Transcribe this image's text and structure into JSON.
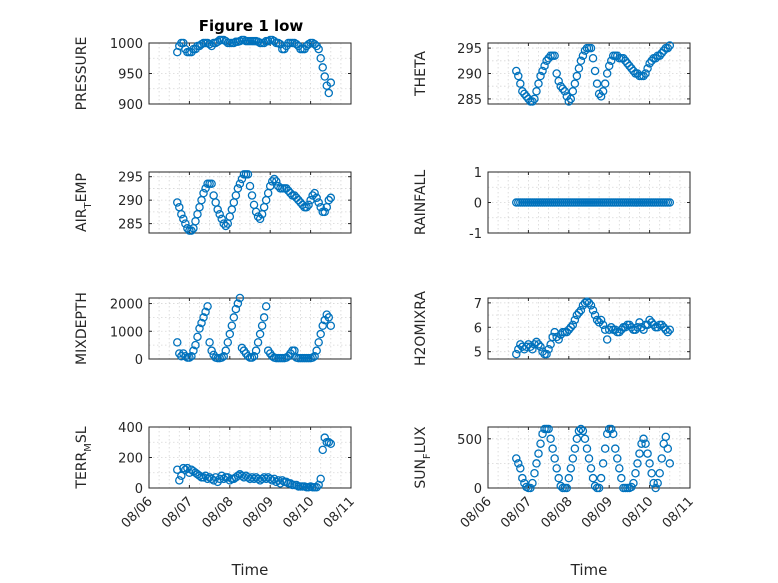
{
  "figure": {
    "title": "Figure 1 low"
  },
  "colors": {
    "marker": "#0072BD",
    "axis": "#262626",
    "grid": "#d6d6d6"
  },
  "x_axis": {
    "label": "Time",
    "ticks": [
      "08/06",
      "08/07",
      "08/08",
      "08/09",
      "08/10",
      "08/11"
    ],
    "range": [
      "08/06",
      "08/11"
    ],
    "label_shown_on": [
      "TERR_MSL",
      "SUN_FLUX"
    ]
  },
  "chart_data": [
    {
      "type": "scatter",
      "ylabel": "PRESSURE",
      "ylim": [
        900,
        1000
      ],
      "yticks": [
        900,
        950,
        1000
      ],
      "grid": true,
      "x": [
        0.7,
        0.75,
        0.8,
        0.85,
        0.9,
        0.95,
        1.0,
        1.05,
        1.1,
        1.15,
        1.2,
        1.25,
        1.3,
        1.35,
        1.4,
        1.45,
        1.5,
        1.55,
        1.6,
        1.65,
        1.7,
        1.75,
        1.8,
        1.85,
        1.9,
        1.95,
        2.0,
        2.05,
        2.1,
        2.15,
        2.2,
        2.25,
        2.3,
        2.35,
        2.4,
        2.45,
        2.5,
        2.55,
        2.6,
        2.65,
        2.7,
        2.75,
        2.8,
        2.85,
        2.9,
        2.95,
        3.0,
        3.05,
        3.1,
        3.15,
        3.2,
        3.25,
        3.3,
        3.35,
        3.4,
        3.45,
        3.5,
        3.55,
        3.6,
        3.65,
        3.7,
        3.75,
        3.8,
        3.85,
        3.9,
        3.95,
        4.0,
        4.05,
        4.1,
        4.15,
        4.2,
        4.25,
        4.3,
        4.35,
        4.4,
        4.45,
        4.5
      ],
      "y": [
        985,
        995,
        1000,
        1000,
        990,
        985,
        985,
        985,
        990,
        990,
        995,
        995,
        998,
        1000,
        1000,
        1000,
        998,
        995,
        1000,
        1000,
        1002,
        1005,
        1005,
        1005,
        1003,
        1000,
        1000,
        1000,
        1000,
        1002,
        1002,
        1003,
        1005,
        1005,
        1003,
        1003,
        1003,
        1003,
        1003,
        1003,
        1002,
        1000,
        1000,
        1000,
        1003,
        1003,
        1005,
        1005,
        1003,
        1000,
        1000,
        998,
        990,
        990,
        995,
        1000,
        1000,
        1000,
        1000,
        998,
        995,
        990,
        990,
        990,
        995,
        998,
        1000,
        1000,
        998,
        995,
        990,
        975,
        960,
        945,
        930,
        918,
        935
      ],
      "series": [
        {
          "name": ""
        }
      ]
    },
    {
      "type": "scatter",
      "ylabel": "THETA",
      "ylim": [
        284,
        296
      ],
      "yticks": [
        285,
        290,
        295
      ],
      "grid": true,
      "x": [
        0.7,
        0.75,
        0.8,
        0.85,
        0.9,
        0.95,
        1.0,
        1.05,
        1.1,
        1.15,
        1.2,
        1.25,
        1.3,
        1.35,
        1.4,
        1.45,
        1.5,
        1.55,
        1.6,
        1.65,
        1.7,
        1.75,
        1.8,
        1.85,
        1.9,
        1.95,
        2.0,
        2.05,
        2.1,
        2.15,
        2.2,
        2.25,
        2.3,
        2.35,
        2.4,
        2.45,
        2.5,
        2.55,
        2.6,
        2.65,
        2.7,
        2.75,
        2.8,
        2.85,
        2.9,
        2.95,
        3.0,
        3.05,
        3.1,
        3.15,
        3.2,
        3.25,
        3.3,
        3.35,
        3.4,
        3.45,
        3.5,
        3.55,
        3.6,
        3.65,
        3.7,
        3.75,
        3.8,
        3.85,
        3.9,
        3.95,
        4.0,
        4.05,
        4.1,
        4.15,
        4.2,
        4.25,
        4.3,
        4.35,
        4.4,
        4.45,
        4.5
      ],
      "y": [
        290.5,
        289.5,
        288,
        286.5,
        286,
        285.5,
        285,
        284.5,
        284.5,
        285,
        286.5,
        288,
        289.5,
        290.5,
        291.5,
        292.5,
        293,
        293.5,
        293.5,
        293.5,
        290,
        288.5,
        287.5,
        287,
        286.5,
        285.5,
        284.5,
        285,
        286.5,
        288,
        289.5,
        291,
        292.5,
        293.5,
        294.5,
        295,
        295,
        295,
        293,
        290.5,
        288,
        286,
        285.5,
        286.5,
        288,
        290,
        291.5,
        292.5,
        293.5,
        293.5,
        293.5,
        293,
        293,
        293,
        292.5,
        292,
        291.5,
        291,
        290.5,
        290,
        290,
        289.5,
        289.5,
        289.5,
        290,
        291,
        292,
        292.5,
        293,
        293,
        293.5,
        293.5,
        294,
        294.5,
        295,
        295,
        295.5
      ],
      "series": [
        {
          "name": ""
        }
      ]
    },
    {
      "type": "scatter",
      "ylabel": "AIR_TEMP",
      "ylabel_parts": [
        "AIR",
        "T",
        "EMP"
      ],
      "ylim": [
        283,
        296
      ],
      "yticks": [
        285,
        290,
        295
      ],
      "grid": true,
      "x": [
        0.7,
        0.75,
        0.8,
        0.85,
        0.9,
        0.95,
        1.0,
        1.05,
        1.1,
        1.15,
        1.2,
        1.25,
        1.3,
        1.35,
        1.4,
        1.45,
        1.5,
        1.55,
        1.6,
        1.65,
        1.7,
        1.75,
        1.8,
        1.85,
        1.9,
        1.95,
        2.0,
        2.05,
        2.1,
        2.15,
        2.2,
        2.25,
        2.3,
        2.35,
        2.4,
        2.45,
        2.5,
        2.55,
        2.6,
        2.65,
        2.7,
        2.75,
        2.8,
        2.85,
        2.9,
        2.95,
        3.0,
        3.05,
        3.1,
        3.15,
        3.2,
        3.25,
        3.3,
        3.35,
        3.4,
        3.45,
        3.5,
        3.55,
        3.6,
        3.65,
        3.7,
        3.75,
        3.8,
        3.85,
        3.9,
        3.95,
        4.0,
        4.05,
        4.1,
        4.15,
        4.2,
        4.25,
        4.3,
        4.35,
        4.4,
        4.45,
        4.5
      ],
      "y": [
        289.5,
        288.5,
        287,
        286,
        285,
        284,
        283.5,
        283.5,
        284,
        285.5,
        287,
        288.5,
        290,
        291.5,
        292.5,
        293.5,
        293.5,
        293.5,
        291,
        289.5,
        288,
        287,
        286,
        285,
        284.5,
        285,
        286.5,
        288,
        289.5,
        291,
        292.5,
        293.5,
        294.5,
        295.5,
        295.5,
        295.5,
        293,
        291,
        289,
        287.5,
        286.5,
        286,
        287,
        288.5,
        290,
        291.5,
        293,
        294,
        294.5,
        294,
        293,
        292.5,
        292.5,
        292.5,
        292.5,
        292,
        291.5,
        291,
        291,
        290.5,
        290,
        289.5,
        289,
        288.5,
        288.5,
        289,
        290,
        291,
        291.5,
        290.5,
        289.5,
        288.5,
        287.5,
        287.5,
        288.5,
        290,
        290.5
      ],
      "series": [
        {
          "name": ""
        }
      ]
    },
    {
      "type": "scatter",
      "ylabel": "RAINFALL",
      "ylim": [
        -1,
        1
      ],
      "yticks": [
        -1,
        0,
        1
      ],
      "grid": true,
      "x": [
        0.7,
        0.75,
        0.8,
        0.85,
        0.9,
        0.95,
        1.0,
        1.05,
        1.1,
        1.15,
        1.2,
        1.25,
        1.3,
        1.35,
        1.4,
        1.45,
        1.5,
        1.55,
        1.6,
        1.65,
        1.7,
        1.75,
        1.8,
        1.85,
        1.9,
        1.95,
        2.0,
        2.05,
        2.1,
        2.15,
        2.2,
        2.25,
        2.3,
        2.35,
        2.4,
        2.45,
        2.5,
        2.55,
        2.6,
        2.65,
        2.7,
        2.75,
        2.8,
        2.85,
        2.9,
        2.95,
        3.0,
        3.05,
        3.1,
        3.15,
        3.2,
        3.25,
        3.3,
        3.35,
        3.4,
        3.45,
        3.5,
        3.55,
        3.6,
        3.65,
        3.7,
        3.75,
        3.8,
        3.85,
        3.9,
        3.95,
        4.0,
        4.05,
        4.1,
        4.15,
        4.2,
        4.25,
        4.3,
        4.35,
        4.4,
        4.45,
        4.5
      ],
      "y": [
        0,
        0,
        0,
        0,
        0,
        0,
        0,
        0,
        0,
        0,
        0,
        0,
        0,
        0,
        0,
        0,
        0,
        0,
        0,
        0,
        0,
        0,
        0,
        0,
        0,
        0,
        0,
        0,
        0,
        0,
        0,
        0,
        0,
        0,
        0,
        0,
        0,
        0,
        0,
        0,
        0,
        0,
        0,
        0,
        0,
        0,
        0,
        0,
        0,
        0,
        0,
        0,
        0,
        0,
        0,
        0,
        0,
        0,
        0,
        0,
        0,
        0,
        0,
        0,
        0,
        0,
        0,
        0,
        0,
        0,
        0,
        0,
        0,
        0,
        0,
        0,
        0
      ],
      "series": [
        {
          "name": ""
        }
      ]
    },
    {
      "type": "scatter",
      "ylabel": "MIXDEPTH",
      "ylim": [
        0,
        2200
      ],
      "yticks": [
        0,
        1000,
        2000
      ],
      "grid": true,
      "x": [
        0.7,
        0.75,
        0.8,
        0.85,
        0.9,
        0.95,
        1.0,
        1.05,
        1.1,
        1.15,
        1.2,
        1.25,
        1.3,
        1.35,
        1.4,
        1.45,
        1.5,
        1.55,
        1.6,
        1.65,
        1.7,
        1.75,
        1.8,
        1.85,
        1.9,
        1.95,
        2.0,
        2.05,
        2.1,
        2.15,
        2.2,
        2.25,
        2.3,
        2.35,
        2.4,
        2.45,
        2.5,
        2.55,
        2.6,
        2.65,
        2.7,
        2.75,
        2.8,
        2.85,
        2.9,
        2.95,
        3.0,
        3.05,
        3.1,
        3.15,
        3.2,
        3.25,
        3.3,
        3.35,
        3.4,
        3.45,
        3.5,
        3.55,
        3.6,
        3.65,
        3.7,
        3.75,
        3.8,
        3.85,
        3.9,
        3.95,
        4.0,
        4.05,
        4.1,
        4.15,
        4.2,
        4.25,
        4.3,
        4.35,
        4.4,
        4.45,
        4.5
      ],
      "y": [
        600,
        200,
        100,
        200,
        100,
        50,
        50,
        100,
        300,
        500,
        800,
        1100,
        1300,
        1500,
        1700,
        1900,
        600,
        300,
        150,
        50,
        30,
        30,
        50,
        100,
        300,
        600,
        900,
        1200,
        1500,
        1800,
        2000,
        2200,
        400,
        300,
        200,
        100,
        50,
        50,
        100,
        300,
        600,
        900,
        1200,
        1500,
        1900,
        300,
        200,
        100,
        50,
        30,
        30,
        30,
        30,
        30,
        50,
        100,
        200,
        300,
        300,
        50,
        30,
        30,
        30,
        30,
        30,
        30,
        30,
        50,
        100,
        300,
        600,
        900,
        1200,
        1400,
        1600,
        1500,
        1200
      ],
      "series": [
        {
          "name": ""
        }
      ]
    },
    {
      "type": "scatter",
      "ylabel": "H2OMIXRA",
      "ylim": [
        4.7,
        7.2
      ],
      "yticks": [
        5,
        6,
        7
      ],
      "grid": true,
      "x": [
        0.7,
        0.75,
        0.8,
        0.85,
        0.9,
        0.95,
        1.0,
        1.05,
        1.1,
        1.15,
        1.2,
        1.25,
        1.3,
        1.35,
        1.4,
        1.45,
        1.5,
        1.55,
        1.6,
        1.65,
        1.7,
        1.75,
        1.8,
        1.85,
        1.9,
        1.95,
        2.0,
        2.05,
        2.1,
        2.15,
        2.2,
        2.25,
        2.3,
        2.35,
        2.4,
        2.45,
        2.5,
        2.55,
        2.6,
        2.65,
        2.7,
        2.75,
        2.8,
        2.85,
        2.9,
        2.95,
        3.0,
        3.05,
        3.1,
        3.15,
        3.2,
        3.25,
        3.3,
        3.35,
        3.4,
        3.45,
        3.5,
        3.55,
        3.6,
        3.65,
        3.7,
        3.75,
        3.8,
        3.85,
        3.9,
        3.95,
        4.0,
        4.05,
        4.1,
        4.15,
        4.2,
        4.25,
        4.3,
        4.35,
        4.4,
        4.45,
        4.5
      ],
      "y": [
        4.9,
        5.1,
        5.3,
        5.2,
        5.1,
        5.2,
        5.3,
        5.2,
        5.1,
        5.3,
        5.4,
        5.3,
        5.2,
        5.0,
        4.9,
        4.9,
        5.1,
        5.3,
        5.6,
        5.8,
        5.6,
        5.5,
        5.7,
        5.8,
        5.8,
        5.8,
        5.9,
        6.0,
        6.1,
        6.3,
        6.5,
        6.6,
        6.7,
        6.9,
        7.0,
        7.05,
        7.0,
        6.9,
        6.7,
        6.5,
        6.3,
        6.2,
        6.3,
        6.1,
        5.9,
        5.5,
        5.9,
        6.0,
        5.9,
        5.9,
        5.8,
        5.8,
        5.9,
        6.0,
        6.0,
        6.1,
        6.1,
        6.0,
        5.9,
        5.9,
        6.0,
        6.2,
        6.0,
        5.9,
        6.1,
        6.1,
        6.3,
        6.2,
        6.1,
        6.0,
        6.0,
        6.1,
        6.1,
        6.0,
        5.9,
        5.8,
        5.9
      ],
      "series": [
        {
          "name": ""
        }
      ]
    },
    {
      "type": "scatter",
      "ylabel": "TERR_MSL",
      "ylabel_parts": [
        "TERR",
        "M",
        "SL"
      ],
      "ylim": [
        0,
        400
      ],
      "yticks": [
        0,
        200,
        400
      ],
      "grid": true,
      "x": [
        0.7,
        0.75,
        0.8,
        0.85,
        0.9,
        0.95,
        1.0,
        1.05,
        1.1,
        1.15,
        1.2,
        1.25,
        1.3,
        1.35,
        1.4,
        1.45,
        1.5,
        1.55,
        1.6,
        1.65,
        1.7,
        1.75,
        1.8,
        1.85,
        1.9,
        1.95,
        2.0,
        2.05,
        2.1,
        2.15,
        2.2,
        2.25,
        2.3,
        2.35,
        2.4,
        2.45,
        2.5,
        2.55,
        2.6,
        2.65,
        2.7,
        2.75,
        2.8,
        2.85,
        2.9,
        2.95,
        3.0,
        3.05,
        3.1,
        3.15,
        3.2,
        3.25,
        3.3,
        3.35,
        3.4,
        3.45,
        3.5,
        3.55,
        3.6,
        3.65,
        3.7,
        3.75,
        3.8,
        3.85,
        3.9,
        3.95,
        4.0,
        4.05,
        4.1,
        4.15,
        4.2,
        4.25,
        4.3,
        4.35,
        4.4,
        4.45,
        4.5
      ],
      "y": [
        120,
        50,
        80,
        130,
        120,
        130,
        100,
        120,
        110,
        100,
        90,
        80,
        70,
        70,
        80,
        60,
        70,
        60,
        50,
        70,
        40,
        60,
        80,
        60,
        70,
        70,
        50,
        60,
        60,
        70,
        80,
        90,
        80,
        70,
        80,
        70,
        60,
        70,
        60,
        70,
        60,
        50,
        60,
        70,
        60,
        70,
        60,
        50,
        60,
        40,
        50,
        30,
        50,
        40,
        40,
        30,
        30,
        20,
        20,
        20,
        10,
        10,
        10,
        10,
        5,
        5,
        10,
        5,
        5,
        5,
        20,
        60,
        250,
        330,
        300,
        300,
        290
      ],
      "series": [
        {
          "name": ""
        }
      ]
    },
    {
      "type": "scatter",
      "ylabel": "SUN_FLUX",
      "ylabel_parts": [
        "SUN",
        "F",
        "LUX"
      ],
      "ylim": [
        0,
        620
      ],
      "yticks": [
        0,
        500
      ],
      "grid": true,
      "x": [
        0.7,
        0.75,
        0.8,
        0.85,
        0.9,
        0.95,
        1.0,
        1.05,
        1.1,
        1.15,
        1.2,
        1.25,
        1.3,
        1.35,
        1.4,
        1.45,
        1.5,
        1.55,
        1.6,
        1.65,
        1.7,
        1.75,
        1.8,
        1.85,
        1.9,
        1.95,
        2.0,
        2.05,
        2.1,
        2.15,
        2.2,
        2.25,
        2.3,
        2.35,
        2.4,
        2.45,
        2.5,
        2.55,
        2.6,
        2.65,
        2.7,
        2.75,
        2.8,
        2.85,
        2.9,
        2.95,
        3.0,
        3.05,
        3.1,
        3.15,
        3.2,
        3.25,
        3.3,
        3.35,
        3.4,
        3.45,
        3.5,
        3.55,
        3.6,
        3.65,
        3.7,
        3.75,
        3.8,
        3.85,
        3.9,
        3.95,
        4.0,
        4.05,
        4.1,
        4.15,
        4.2,
        4.25,
        4.3,
        4.35,
        4.4,
        4.45,
        4.5
      ],
      "y": [
        300,
        250,
        200,
        100,
        50,
        10,
        0,
        0,
        50,
        150,
        250,
        350,
        450,
        550,
        600,
        600,
        600,
        500,
        400,
        300,
        200,
        100,
        20,
        0,
        0,
        0,
        100,
        200,
        300,
        400,
        500,
        580,
        600,
        580,
        500,
        400,
        300,
        200,
        100,
        20,
        0,
        0,
        100,
        250,
        400,
        550,
        600,
        600,
        550,
        400,
        300,
        200,
        100,
        0,
        0,
        0,
        0,
        10,
        50,
        150,
        250,
        350,
        450,
        500,
        450,
        350,
        250,
        150,
        50,
        0,
        50,
        150,
        300,
        450,
        520,
        400,
        250
      ],
      "series": [
        {
          "name": ""
        }
      ]
    }
  ]
}
